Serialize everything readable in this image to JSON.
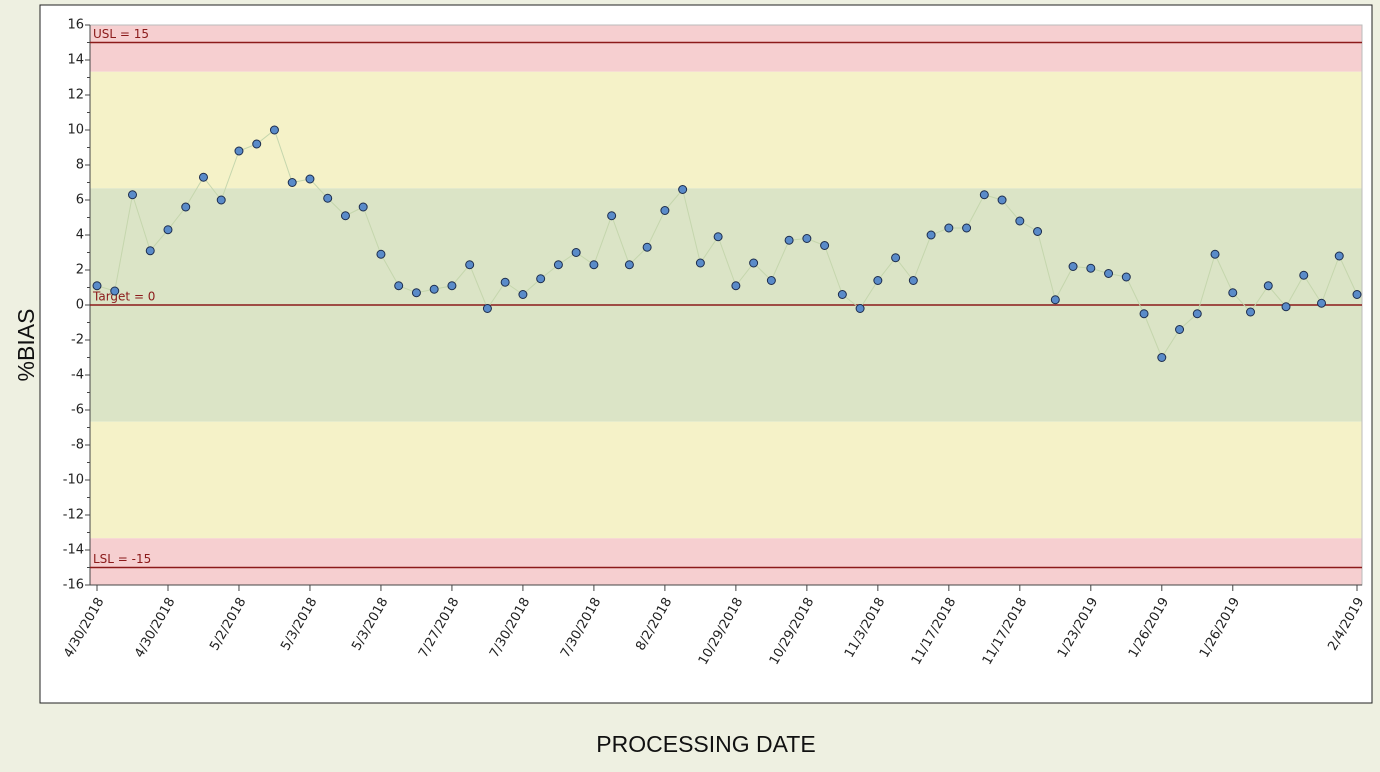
{
  "chart_data": {
    "type": "control",
    "ylabel": "%BIAS",
    "xlabel": "PROCESSING DATE",
    "ylim": [
      -16,
      16
    ],
    "yticks": [
      -16,
      -14,
      -12,
      -10,
      -8,
      -6,
      -4,
      -2,
      0,
      2,
      4,
      6,
      8,
      10,
      12,
      14,
      16
    ],
    "zones": [
      {
        "from": 13.33,
        "to": 16,
        "color": "#f6cfd0"
      },
      {
        "from": 6.67,
        "to": 13.33,
        "color": "#f5f2c8"
      },
      {
        "from": -6.67,
        "to": 6.67,
        "color": "#dbe4c6"
      },
      {
        "from": -13.33,
        "to": -6.67,
        "color": "#f5f2c8"
      },
      {
        "from": -16,
        "to": -13.33,
        "color": "#f6cfd0"
      }
    ],
    "limits": [
      {
        "label": "USL = 15",
        "value": 15
      },
      {
        "label": "Target = 0",
        "value": 0
      },
      {
        "label": "LSL = -15",
        "value": -15
      }
    ],
    "limit_color": "#8b1a1a",
    "line_color": "#c5d6ad",
    "point_color": "#5a8bc9",
    "categories": [
      "4/30/2018",
      null,
      null,
      null,
      "4/30/2018",
      null,
      null,
      null,
      "5/2/2018",
      null,
      null,
      null,
      "5/3/2018",
      null,
      null,
      null,
      "5/3/2018",
      null,
      null,
      null,
      "7/27/2018",
      null,
      null,
      null,
      "7/30/2018",
      null,
      null,
      null,
      "7/30/2018",
      null,
      null,
      null,
      "8/2/2018",
      null,
      null,
      null,
      "10/29/2018",
      null,
      null,
      null,
      "10/29/2018",
      null,
      null,
      null,
      "11/3/2018",
      null,
      null,
      null,
      "11/17/2018",
      null,
      null,
      null,
      "11/17/2018",
      null,
      null,
      null,
      "1/23/2019",
      null,
      null,
      null,
      "1/26/2019",
      null,
      null,
      null,
      "1/26/2019",
      null,
      null,
      null,
      null,
      null,
      null,
      "2/4/2019"
    ],
    "values": [
      1.1,
      0.8,
      6.3,
      3.1,
      4.3,
      5.6,
      7.3,
      6.0,
      8.8,
      9.2,
      10.0,
      7.0,
      7.2,
      6.1,
      5.1,
      5.6,
      2.9,
      1.1,
      0.7,
      0.9,
      1.1,
      2.3,
      -0.2,
      1.3,
      0.6,
      1.5,
      2.3,
      3.0,
      2.3,
      5.1,
      2.3,
      3.3,
      5.4,
      6.6,
      2.4,
      3.9,
      1.1,
      2.4,
      1.4,
      3.7,
      3.8,
      3.4,
      0.6,
      -0.2,
      1.4,
      2.7,
      1.4,
      4.0,
      4.4,
      4.4,
      6.3,
      6.0,
      4.8,
      4.2,
      0.3,
      2.2,
      2.1,
      1.8,
      1.6,
      -0.5,
      -3.0,
      -1.4,
      -0.5,
      2.9,
      0.7,
      -0.4,
      1.1,
      -0.1,
      1.7,
      0.1,
      2.8,
      0.6
    ]
  }
}
